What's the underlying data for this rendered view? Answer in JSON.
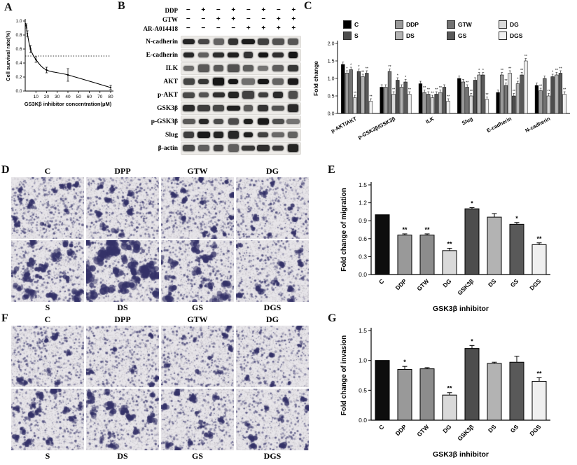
{
  "panelA": {
    "letter": "A",
    "ylabel": "Cell survival rate(%)",
    "xlabel": "GS3Kβ inhibitor concentration(μM)",
    "chart_data": {
      "type": "line",
      "x": [
        1,
        2,
        5,
        10,
        20,
        40,
        80
      ],
      "y": [
        0.93,
        0.82,
        0.6,
        0.45,
        0.3,
        0.23,
        0.05
      ],
      "errors": [
        0.03,
        0.04,
        0.05,
        0.04,
        0.04,
        0.09,
        0.03
      ],
      "xlim": [
        0,
        80
      ],
      "ylim": [
        0,
        1.0
      ],
      "xticks": [
        10,
        20,
        30,
        40,
        50,
        60,
        70,
        80
      ],
      "yticks": [
        0.0,
        0.2,
        0.4,
        0.6,
        0.8,
        1.0
      ],
      "reference_line_y": 0.5
    }
  },
  "panelB": {
    "letter": "B",
    "treatments": [
      {
        "name": "DDP",
        "signs": [
          "−",
          "+",
          "−",
          "+",
          "−",
          "+",
          "−",
          "+"
        ]
      },
      {
        "name": "GTW",
        "signs": [
          "−",
          "−",
          "+",
          "+",
          "−",
          "−",
          "+",
          "+"
        ]
      },
      {
        "name": "AR-A014418",
        "signs": [
          "−",
          "−",
          "−",
          "−",
          "+",
          "+",
          "+",
          "+"
        ]
      }
    ],
    "blots": [
      "N-cadherin",
      "E-cadherin",
      "ILK",
      "AKT",
      "p-AKT",
      "GSK3β",
      "p-GSK3β",
      "Slug",
      "β-actin"
    ]
  },
  "panelC": {
    "letter": "C",
    "ylabel": "Fold change",
    "legend": [
      {
        "label": "C",
        "color": "#000000"
      },
      {
        "label": "S",
        "color": "#4d4d4d"
      },
      {
        "label": "DDP",
        "color": "#999999"
      },
      {
        "label": "DS",
        "color": "#b3b3b3"
      },
      {
        "label": "GTW",
        "color": "#737373"
      },
      {
        "label": "GS",
        "color": "#595959"
      },
      {
        "label": "DG",
        "color": "#d9d9d9"
      },
      {
        "label": "DGS",
        "color": "#f0f0f0"
      }
    ],
    "chart_data": {
      "type": "bar",
      "categories": [
        "p-AKT/AKT",
        "p-GSK3β/GSK3β",
        "ILK",
        "Slug",
        "E-cadherin",
        "N-cadherin"
      ],
      "ylim": [
        0,
        2.0
      ],
      "yticks": [
        0.0,
        0.5,
        1.0,
        1.5,
        2.0
      ],
      "series": [
        {
          "name": "C",
          "color": "#000000",
          "values": [
            1.4,
            0.75,
            0.85,
            1.0,
            0.6,
            0.8
          ],
          "sig": [
            "",
            "",
            "",
            "",
            "",
            ""
          ]
        },
        {
          "name": "DDP",
          "color": "#999999",
          "values": [
            1.15,
            0.75,
            0.6,
            0.9,
            1.1,
            0.65
          ],
          "sig": [
            "*",
            "",
            "**",
            "",
            "**",
            "**"
          ]
        },
        {
          "name": "GTW",
          "color": "#737373",
          "values": [
            1.25,
            1.2,
            0.55,
            0.75,
            0.8,
            1.0
          ],
          "sig": [
            "*",
            "**",
            "**",
            "**",
            "**",
            ""
          ]
        },
        {
          "name": "DG",
          "color": "#d9d9d9",
          "values": [
            0.45,
            0.55,
            0.45,
            0.5,
            1.15,
            0.5
          ],
          "sig": [
            "**",
            "**",
            "**",
            "**",
            "**",
            "**"
          ]
        },
        {
          "name": "S",
          "color": "#4d4d4d",
          "values": [
            1.2,
            0.95,
            0.55,
            0.95,
            0.5,
            1.05
          ],
          "sig": [
            "*",
            "*",
            "**",
            "",
            "**",
            "*"
          ]
        },
        {
          "name": "DS",
          "color": "#b3b3b3",
          "values": [
            1.05,
            0.75,
            0.6,
            1.1,
            0.85,
            1.1
          ],
          "sig": [
            "**",
            "",
            "**",
            "*",
            "*",
            "**"
          ]
        },
        {
          "name": "GS",
          "color": "#595959",
          "values": [
            1.15,
            0.9,
            0.75,
            1.1,
            1.1,
            1.15
          ],
          "sig": [
            "**",
            "*",
            "",
            "*",
            "**",
            "**"
          ]
        },
        {
          "name": "DGS",
          "color": "#f0f0f0",
          "values": [
            0.35,
            0.55,
            0.35,
            0.4,
            1.5,
            0.55
          ],
          "sig": [
            "**",
            "**",
            "**",
            "**",
            "**",
            "**"
          ]
        }
      ]
    }
  },
  "panelD": {
    "letter": "D",
    "top_labels": [
      "C",
      "DPP",
      "GTW",
      "DG"
    ],
    "bottom_labels": [
      "S",
      "DS",
      "GS",
      "DGS"
    ],
    "texture": {
      "row1": [
        {
          "dots": 430,
          "blobs": 13,
          "blobR": 4
        },
        {
          "dots": 380,
          "blobs": 10,
          "blobR": 5
        },
        {
          "dots": 410,
          "blobs": 14,
          "blobR": 4
        },
        {
          "dots": 350,
          "blobs": 8,
          "blobR": 4
        }
      ],
      "row2": [
        {
          "dots": 340,
          "blobs": 22,
          "blobR": 6
        },
        {
          "dots": 330,
          "blobs": 30,
          "blobR": 9
        },
        {
          "dots": 340,
          "blobs": 20,
          "blobR": 7
        },
        {
          "dots": 300,
          "blobs": 10,
          "blobR": 5
        }
      ]
    }
  },
  "panelE": {
    "letter": "E",
    "ylabel": "Fold change of migration",
    "xlabel": "GSK3β inhibitor",
    "chart_data": {
      "type": "bar",
      "categories": [
        "C",
        "DDP",
        "GTW",
        "DG",
        "GSK3β",
        "DS",
        "GS",
        "DGS"
      ],
      "values": [
        1.0,
        0.66,
        0.66,
        0.4,
        1.1,
        0.96,
        0.84,
        0.5
      ],
      "errors": [
        0,
        0.02,
        0.02,
        0.04,
        0.02,
        0.06,
        0.03,
        0.03
      ],
      "sig": [
        "",
        "**",
        "**",
        "**",
        "*",
        "",
        "*",
        "**"
      ],
      "colors": [
        "#0d0d0d",
        "#999999",
        "#8c8c8c",
        "#d9d9d9",
        "#4d4d4d",
        "#b3b3b3",
        "#595959",
        "#f0f0f0"
      ],
      "ylim": [
        0,
        1.5
      ],
      "yticks": [
        0.0,
        0.3,
        0.6,
        0.9,
        1.2,
        1.5
      ]
    }
  },
  "panelF": {
    "letter": "F",
    "top_labels": [
      "C",
      "DPP",
      "GTW",
      "DG"
    ],
    "bottom_labels": [
      "S",
      "DS",
      "GS",
      "DGS"
    ],
    "texture": {
      "row1": [
        {
          "dots": 400,
          "blobs": 9,
          "blobR": 4
        },
        {
          "dots": 360,
          "blobs": 8,
          "blobR": 4
        },
        {
          "dots": 380,
          "blobs": 10,
          "blobR": 4
        },
        {
          "dots": 330,
          "blobs": 7,
          "blobR": 4
        }
      ],
      "row2": [
        {
          "dots": 340,
          "blobs": 14,
          "blobR": 5
        },
        {
          "dots": 330,
          "blobs": 16,
          "blobR": 6
        },
        {
          "dots": 320,
          "blobs": 12,
          "blobR": 5
        },
        {
          "dots": 300,
          "blobs": 10,
          "blobR": 5
        }
      ]
    }
  },
  "panelG": {
    "letter": "G",
    "ylabel": "Fold change of invasion",
    "xlabel": "GSK3β inhibitor",
    "chart_data": {
      "type": "bar",
      "categories": [
        "C",
        "DDP",
        "GTW",
        "DG",
        "GSK3β",
        "DS",
        "GS",
        "DGS"
      ],
      "values": [
        1.0,
        0.85,
        0.86,
        0.42,
        1.2,
        0.95,
        0.97,
        0.65
      ],
      "errors": [
        0,
        0.05,
        0.02,
        0.04,
        0.05,
        0.02,
        0.1,
        0.06
      ],
      "sig": [
        "",
        "*",
        "",
        "**",
        "*",
        "",
        "",
        "**"
      ],
      "colors": [
        "#0d0d0d",
        "#999999",
        "#8c8c8c",
        "#d9d9d9",
        "#4d4d4d",
        "#b3b3b3",
        "#595959",
        "#f0f0f0"
      ],
      "ylim": [
        0,
        1.5
      ],
      "yticks": [
        0.0,
        0.5,
        1.0,
        1.5
      ]
    }
  }
}
